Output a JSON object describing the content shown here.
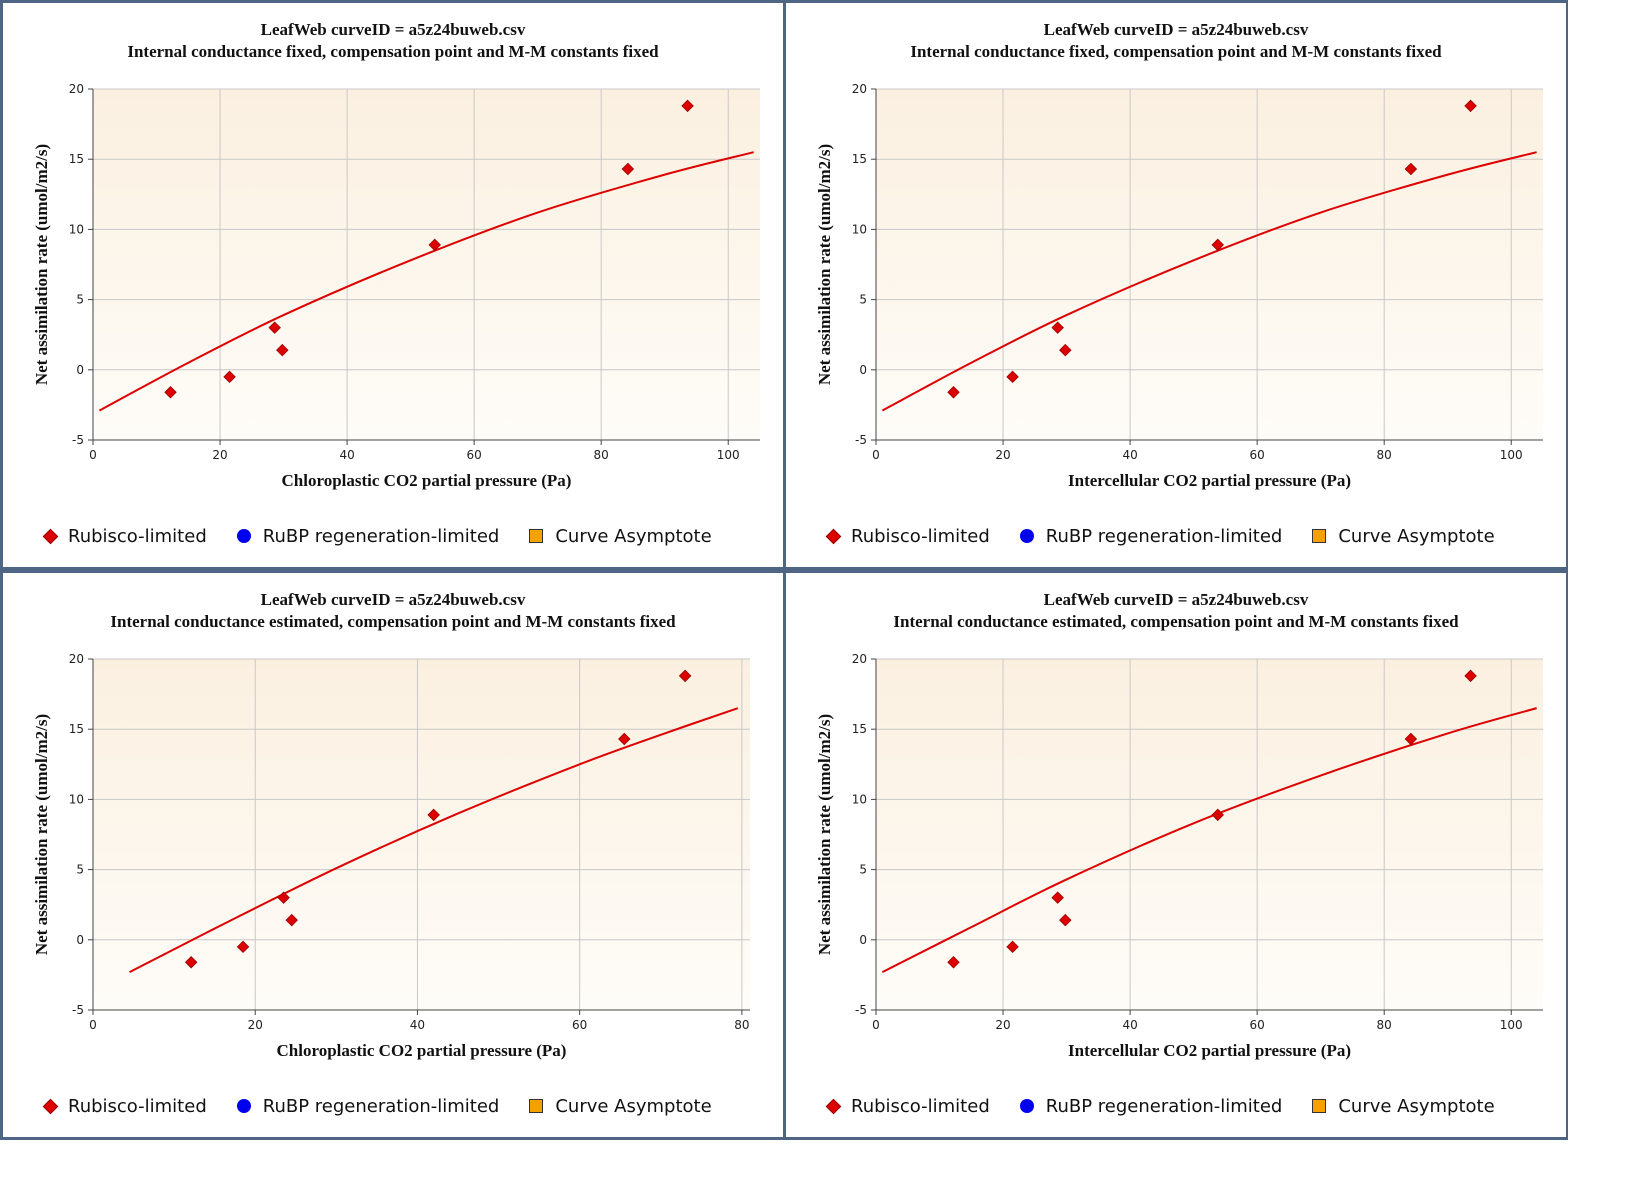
{
  "legend": {
    "rubisco": "Rubisco-limited",
    "rubp": "RuBP regeneration-limited",
    "asymptote": "Curve Asymptote"
  },
  "colors": {
    "rubisco": "#dd0000",
    "rubp": "#0000ee",
    "asymptote": "#f5a200",
    "plot_bg_top": "#fbf0e0",
    "plot_bg_bottom": "#fefcf8",
    "frame": "#4f6584"
  },
  "chart_data": [
    {
      "type": "scatter",
      "title": "LeafWeb curveID = a5z24buweb.csv",
      "subtitle": "Internal conductance fixed, compensation point and M-M constants fixed",
      "xlabel": "Chloroplastic CO2 partial pressure (Pa)",
      "ylabel": "Net assimilation rate (umol/m2/s)",
      "xlim": [
        0,
        105
      ],
      "ylim": [
        -5,
        20
      ],
      "xticks": [
        0,
        20,
        40,
        60,
        80,
        100
      ],
      "yticks": [
        -5,
        0,
        5,
        10,
        15,
        20
      ],
      "grid": true,
      "legend_position": "bottom",
      "series": [
        {
          "name": "Rubisco-limited",
          "x": [
            12.2,
            21.5,
            28.6,
            29.8,
            53.8,
            84.2,
            93.6
          ],
          "y": [
            -1.6,
            -0.5,
            3.0,
            1.4,
            8.9,
            14.3,
            18.8
          ]
        }
      ],
      "fit_curve": {
        "x": [
          1,
          15,
          30,
          50,
          70,
          90,
          104
        ],
        "y": [
          -2.9,
          0.5,
          3.9,
          7.8,
          11.2,
          13.9,
          15.5
        ]
      }
    },
    {
      "type": "scatter",
      "title": "LeafWeb curveID = a5z24buweb.csv",
      "subtitle": "Internal conductance fixed, compensation point and M-M constants fixed",
      "xlabel": "Intercellular CO2 partial pressure (Pa)",
      "ylabel": "Net assimilation rate (umol/m2/s)",
      "xlim": [
        0,
        105
      ],
      "ylim": [
        -5,
        20
      ],
      "xticks": [
        0,
        20,
        40,
        60,
        80,
        100
      ],
      "yticks": [
        -5,
        0,
        5,
        10,
        15,
        20
      ],
      "grid": true,
      "legend_position": "bottom",
      "series": [
        {
          "name": "Rubisco-limited",
          "x": [
            12.2,
            21.5,
            28.6,
            29.8,
            53.8,
            84.2,
            93.6
          ],
          "y": [
            -1.6,
            -0.5,
            3.0,
            1.4,
            8.9,
            14.3,
            18.8
          ]
        }
      ],
      "fit_curve": {
        "x": [
          1,
          15,
          30,
          50,
          70,
          90,
          104
        ],
        "y": [
          -2.9,
          0.5,
          3.9,
          7.8,
          11.2,
          13.9,
          15.5
        ]
      }
    },
    {
      "type": "scatter",
      "title": "LeafWeb curveID = a5z24buweb.csv",
      "subtitle": "Internal conductance estimated, compensation point and M-M constants fixed",
      "xlabel": "Chloroplastic CO2 partial pressure (Pa)",
      "ylabel": "Net assimilation rate (umol/m2/s)",
      "xlim": [
        0,
        81
      ],
      "ylim": [
        -5,
        20
      ],
      "xticks": [
        0,
        20,
        40,
        60,
        80
      ],
      "yticks": [
        -5,
        0,
        5,
        10,
        15,
        20
      ],
      "grid": true,
      "legend_position": "bottom",
      "series": [
        {
          "name": "Rubisco-limited",
          "x": [
            12.1,
            18.5,
            23.5,
            24.5,
            42.0,
            65.5,
            73.0
          ],
          "y": [
            -1.6,
            -0.5,
            3.0,
            1.4,
            8.9,
            14.3,
            18.8
          ]
        }
      ],
      "fit_curve": {
        "x": [
          4.5,
          15,
          30,
          45,
          60,
          70,
          79.5
        ],
        "y": [
          -2.3,
          0.8,
          5.1,
          9.0,
          12.5,
          14.6,
          16.5
        ]
      }
    },
    {
      "type": "scatter",
      "title": "LeafWeb curveID = a5z24buweb.csv",
      "subtitle": "Internal conductance estimated, compensation point and M-M constants fixed",
      "xlabel": "Intercellular CO2 partial pressure (Pa)",
      "ylabel": "Net assimilation rate (umol/m2/s)",
      "xlim": [
        0,
        105
      ],
      "ylim": [
        -5,
        20
      ],
      "xticks": [
        0,
        20,
        40,
        60,
        80,
        100
      ],
      "yticks": [
        -5,
        0,
        5,
        10,
        15,
        20
      ],
      "grid": true,
      "legend_position": "bottom",
      "series": [
        {
          "name": "Rubisco-limited",
          "x": [
            12.2,
            21.5,
            28.6,
            29.8,
            53.8,
            84.2,
            93.6
          ],
          "y": [
            -1.6,
            -0.5,
            3.0,
            1.4,
            8.9,
            14.3,
            18.8
          ]
        }
      ],
      "fit_curve": {
        "x": [
          1,
          15,
          30,
          50,
          70,
          90,
          104
        ],
        "y": [
          -2.3,
          0.9,
          4.3,
          8.3,
          11.7,
          14.7,
          16.5
        ]
      }
    }
  ]
}
